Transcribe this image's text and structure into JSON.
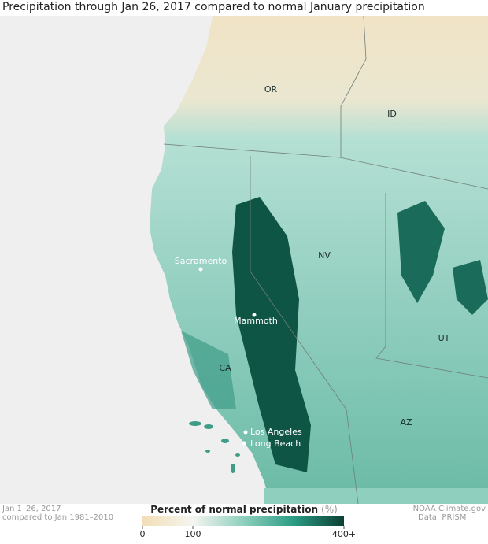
{
  "title": "Precipitation through Jan 26, 2017 compared to normal January precipitation",
  "states": [
    "OR",
    "ID",
    "NV",
    "UT",
    "CA",
    "AZ"
  ],
  "cities": [
    "Sacramento",
    "Mammoth",
    "Los Angeles",
    "Long Beach"
  ],
  "legend": {
    "title": "Percent of normal precipitation",
    "unit": "(%)",
    "range": [
      0,
      400
    ],
    "ticks": [
      0,
      100,
      {
        "value": 400,
        "label": "400+"
      }
    ],
    "colors": [
      "#f2deb5",
      "#f5f5f0",
      "#8fd0be",
      "#2c9c85",
      "#0b3f33"
    ]
  },
  "footer": {
    "period": "Jan 1–26, 2017",
    "baseline": "compared to Jan 1981–2010",
    "credit": "NOAA Climate.gov",
    "source": "Data: PRISM"
  }
}
